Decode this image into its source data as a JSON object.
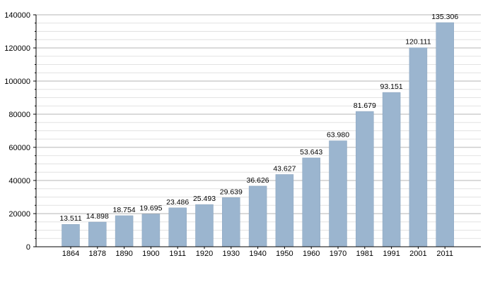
{
  "chart_data": {
    "type": "bar",
    "title": "",
    "xlabel": "",
    "ylabel": "",
    "categories": [
      "1864",
      "1878",
      "1890",
      "1900",
      "1911",
      "1920",
      "1930",
      "1940",
      "1950",
      "1960",
      "1970",
      "1981",
      "1991",
      "2001",
      "2011"
    ],
    "values": [
      13511,
      14898,
      18754,
      19695,
      23486,
      25493,
      29639,
      36626,
      43627,
      53643,
      63980,
      81679,
      93151,
      120111,
      135306
    ],
    "data_labels": [
      "13.511",
      "14.898",
      "18.754",
      "19.695",
      "23.486",
      "25.493",
      "29.639",
      "36.626",
      "43.627",
      "53.643",
      "63.980",
      "81.679",
      "93.151",
      "120.111",
      "135.306"
    ],
    "ylim": [
      0,
      140000
    ],
    "yticks": [
      0,
      20000,
      40000,
      60000,
      80000,
      100000,
      120000,
      140000
    ],
    "ytick_labels": [
      "0",
      "20000",
      "40000",
      "60000",
      "80000",
      "100000",
      "120000",
      "140000"
    ],
    "grid": true,
    "legend": "none",
    "colors": {
      "bar": "#9bb5cf",
      "bar_edge": "#8aa4be",
      "grid_major": "#b4b4b4",
      "grid_minor": "#e2e2e2",
      "axis": "#000000"
    }
  }
}
